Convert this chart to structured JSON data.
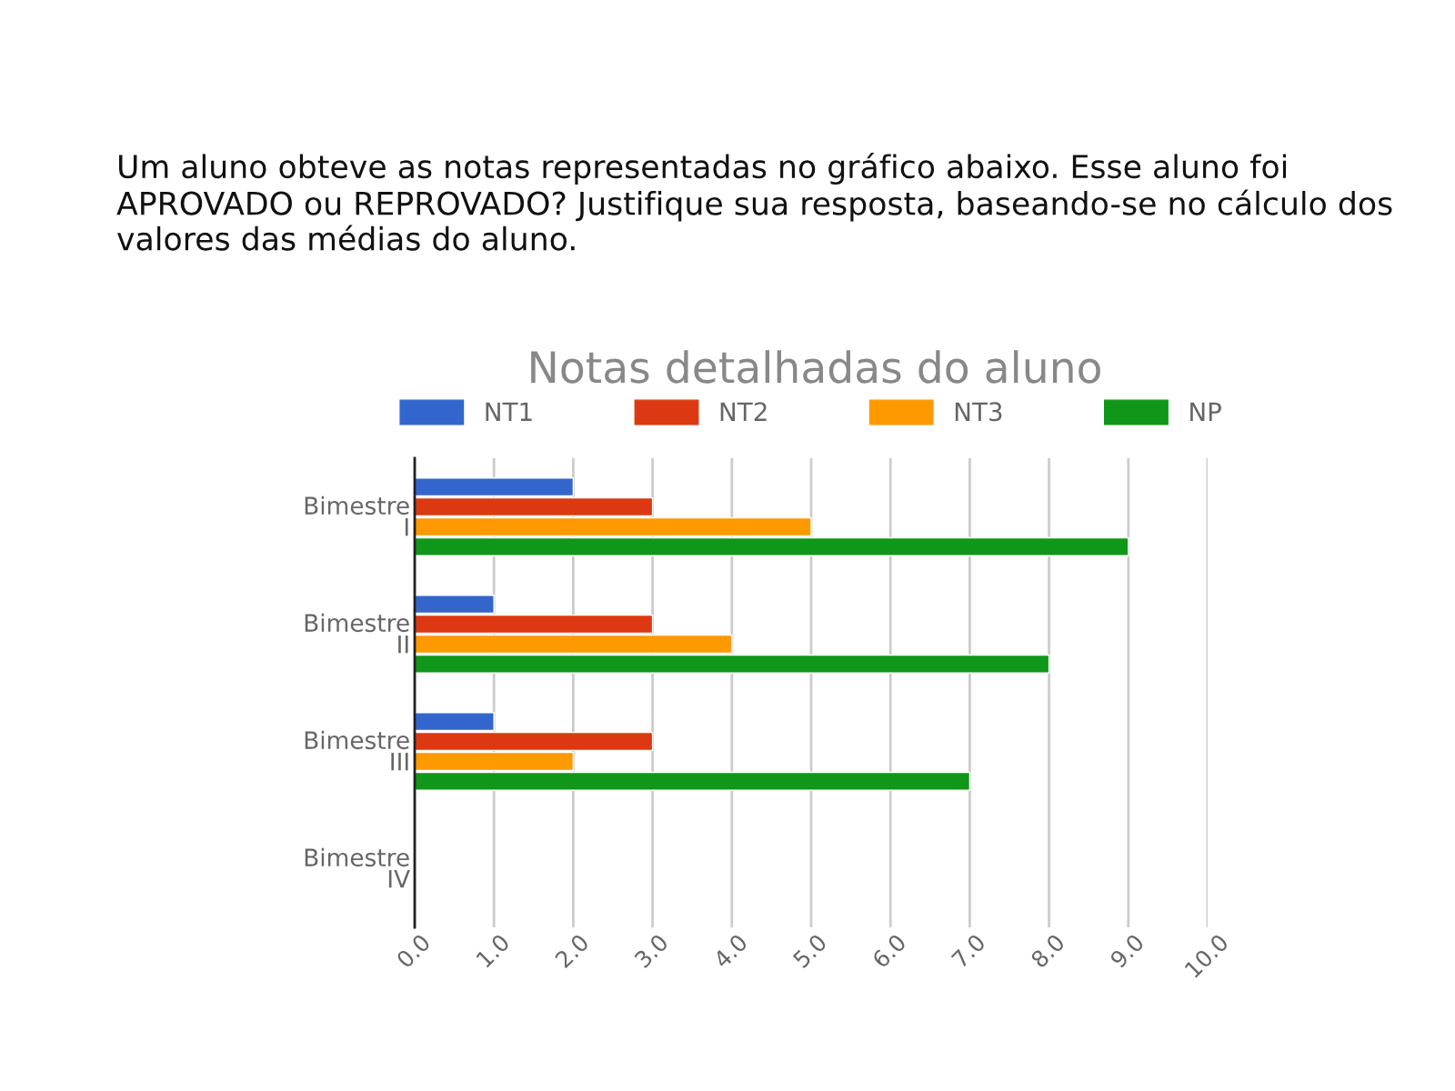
{
  "chart_data": {
    "type": "bar",
    "orientation": "horizontal",
    "title": "Notas detalhadas do aluno",
    "annotations": [
      "Um aluno obteve as notas representadas no gráfico abaixo. Esse aluno foi APROVADO ou REPROVADO? Justifique sua resposta, baseando-se no cálculo dos valores das médias do aluno."
    ],
    "categories": [
      "Bimestre\nI",
      "Bimestre\nII",
      "Bimestre\nIII",
      "Bimestre\nIV"
    ],
    "series": [
      {
        "name": "NT1",
        "color": "#3366cc",
        "values": [
          2.0,
          1.0,
          1.0,
          null
        ]
      },
      {
        "name": "NT2",
        "color": "#dc3912",
        "values": [
          3.0,
          3.0,
          3.0,
          null
        ]
      },
      {
        "name": "NT3",
        "color": "#ff9900",
        "values": [
          5.0,
          4.0,
          2.0,
          null
        ]
      },
      {
        "name": "NP",
        "color": "#109618",
        "values": [
          9.0,
          8.0,
          7.0,
          null
        ]
      }
    ],
    "xlim": [
      0,
      10
    ],
    "xticks": [
      {
        "value": 0,
        "label": "0.0"
      },
      {
        "value": 1,
        "label": "1.0"
      },
      {
        "value": 2,
        "label": "2.0"
      },
      {
        "value": 3,
        "label": "3.0"
      },
      {
        "value": 4,
        "label": "4.0"
      },
      {
        "value": 5,
        "label": "5.0"
      },
      {
        "value": 6,
        "label": "6.0"
      },
      {
        "value": 7,
        "label": "7.0"
      },
      {
        "value": 8,
        "label": "8.0"
      },
      {
        "value": 9,
        "label": "9.0"
      },
      {
        "value": 10,
        "label": "10.0"
      }
    ],
    "grid": "x",
    "legend": "top"
  }
}
